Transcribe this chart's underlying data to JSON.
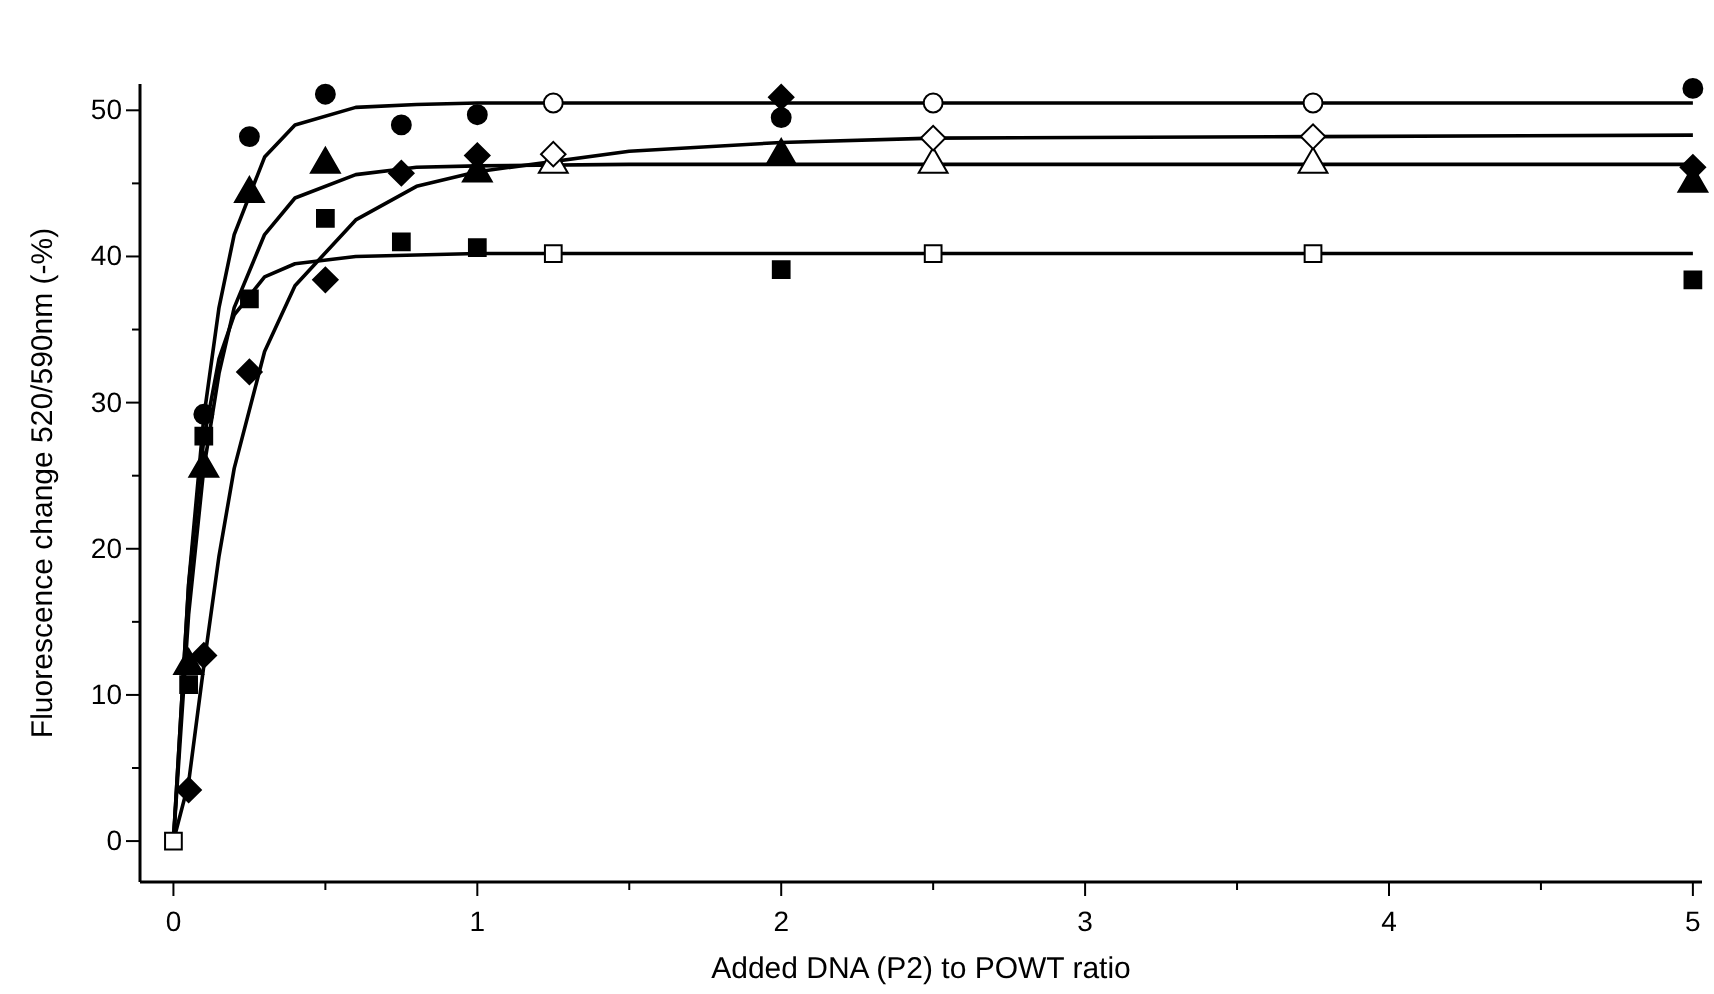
{
  "chart_data": {
    "type": "scatter",
    "xlabel": "Added DNA (P2) to POWT ratio",
    "ylabel": "Fluorescence change 520/590nm (-%)",
    "xlim": [
      -0.11,
      5.03
    ],
    "ylim": [
      -2.8,
      51.8
    ],
    "xticks": [
      0,
      {
        "value": 0.5,
        "label": null
      },
      1,
      {
        "value": 1.5,
        "label": null
      },
      2,
      {
        "value": 2.5,
        "label": null
      },
      3,
      {
        "value": 3.5,
        "label": null
      },
      4,
      {
        "value": 4.5,
        "label": null
      },
      5
    ],
    "yticks": [
      0,
      {
        "value": 5,
        "label": null
      },
      10,
      {
        "value": 15,
        "label": null
      },
      20,
      {
        "value": 25,
        "label": null
      },
      30,
      {
        "value": 35,
        "label": null
      },
      40,
      {
        "value": 45,
        "label": null
      },
      50
    ],
    "grid": false,
    "series": [
      {
        "type": "line",
        "marker": "none",
        "color": "#000000",
        "x": [
          0,
          0.05,
          0.1,
          0.15,
          0.2,
          0.3,
          0.4,
          0.6,
          0.8,
          1,
          1.5,
          5
        ],
        "values": [
          0,
          17.6,
          29,
          36.5,
          41.5,
          46.8,
          49,
          50.2,
          50.4,
          50.5,
          50.5,
          50.5
        ]
      },
      {
        "type": "line",
        "marker": "none",
        "color": "#000000",
        "x": [
          0,
          0.05,
          0.1,
          0.15,
          0.2,
          0.3,
          0.4,
          0.6,
          0.8,
          1,
          1.5,
          5
        ],
        "values": [
          0,
          15.5,
          25.5,
          32,
          36.5,
          41.5,
          44,
          45.6,
          46.1,
          46.2,
          46.3,
          46.3
        ]
      },
      {
        "type": "line",
        "marker": "none",
        "color": "#000000",
        "x": [
          0,
          0.05,
          0.1,
          0.15,
          0.2,
          0.3,
          0.4,
          0.6,
          0.8,
          1,
          1.5,
          5
        ],
        "values": [
          0,
          17.5,
          27.5,
          33,
          36,
          38.6,
          39.5,
          40,
          40.1,
          40.2,
          40.2,
          40.2
        ]
      },
      {
        "type": "line",
        "marker": "none",
        "color": "#000000",
        "x": [
          0,
          0.05,
          0.1,
          0.15,
          0.2,
          0.3,
          0.4,
          0.6,
          0.8,
          1,
          1.5,
          2,
          2.5,
          3.75,
          5
        ],
        "values": [
          0,
          4,
          12,
          19.5,
          25.5,
          33.5,
          38,
          42.5,
          44.8,
          45.8,
          47.2,
          47.8,
          48.1,
          48.2,
          48.3
        ]
      },
      {
        "marker": "circle",
        "color": "#ffffff",
        "x": [
          1.25,
          2.5,
          3.75
        ],
        "values": [
          50.5,
          50.5,
          50.5
        ]
      },
      {
        "marker": "triangle",
        "color": "#ffffff",
        "x": [
          1.25,
          2.5,
          3.75
        ],
        "values": [
          46.3,
          46.3,
          46.3
        ]
      },
      {
        "marker": "diamond",
        "color": "#ffffff",
        "x": [
          1.25,
          2.5,
          3.75
        ],
        "values": [
          47,
          48.1,
          48.2
        ]
      },
      {
        "marker": "square",
        "color": "#ffffff",
        "x": [
          0,
          1.25,
          2.5,
          3.75
        ],
        "values": [
          0,
          40.2,
          40.2,
          40.2
        ]
      },
      {
        "marker": "circle",
        "color": "#000000",
        "x": [
          0.1,
          0.25,
          0.5,
          0.75,
          1,
          2,
          5
        ],
        "values": [
          29.2,
          48.2,
          51.1,
          49,
          49.7,
          49.5,
          51.5
        ]
      },
      {
        "marker": "triangle",
        "color": "#000000",
        "x": [
          0.05,
          0.1,
          0.25,
          0.5,
          1,
          2,
          5
        ],
        "values": [
          12,
          25.5,
          44.3,
          46.3,
          45.7,
          46.9,
          45
        ]
      },
      {
        "marker": "square",
        "color": "#000000",
        "x": [
          0.05,
          0.1,
          0.25,
          0.5,
          0.75,
          1,
          2,
          5
        ],
        "values": [
          10.7,
          27.7,
          37.1,
          42.6,
          41,
          40.6,
          39.1,
          38.4
        ]
      },
      {
        "marker": "diamond",
        "color": "#000000",
        "x": [
          0.05,
          0.1,
          0.25,
          0.5,
          0.75,
          1,
          2,
          5
        ],
        "values": [
          3.5,
          12.7,
          32.1,
          38.4,
          45.7,
          46.9,
          50.9,
          46.1
        ]
      }
    ]
  }
}
